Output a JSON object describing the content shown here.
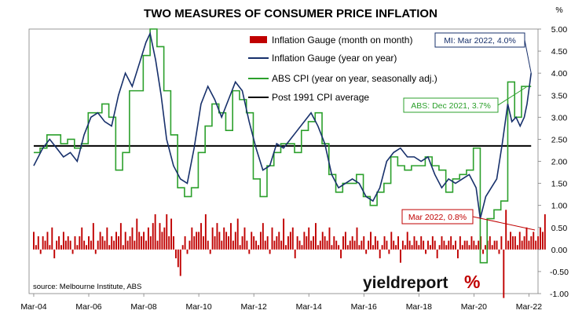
{
  "chart_data": {
    "type": "bar+line",
    "title": "TWO MEASURES OF CONSUMER PRICE INFLATION",
    "y_unit_label": "%",
    "ylim": [
      -1.0,
      5.0
    ],
    "y_ticks": [
      "5.00",
      "4.50",
      "4.00",
      "3.50",
      "3.00",
      "2.50",
      "2.00",
      "1.50",
      "1.00",
      "0.50",
      "0.00",
      "-0.50",
      "-1.00"
    ],
    "x_ticks": [
      "Mar-04",
      "Mar-06",
      "Mar-08",
      "Mar-10",
      "Mar-12",
      "Mar-14",
      "Mar-16",
      "Mar-18",
      "Mar-20",
      "Mar-22"
    ],
    "x_range": [
      "2004-03",
      "2022-03"
    ],
    "grid": false,
    "legend_position": "top-center",
    "legend": [
      {
        "label": "Inflation Gauge (month on month)",
        "color": "#c00000",
        "kind": "bar"
      },
      {
        "label": "Inflation Gauge (year on year)",
        "color": "#17306b",
        "kind": "line"
      },
      {
        "label": "ABS CPI (year on year, seasonally adj.)",
        "color": "#2ca02c",
        "kind": "line"
      },
      {
        "label": "Post 1991 CPI average",
        "color": "#000000",
        "kind": "line"
      }
    ],
    "series": [
      {
        "name": "Inflation Gauge (year on year)",
        "color": "#17306b",
        "points": [
          [
            2004.17,
            1.9
          ],
          [
            2004.5,
            2.3
          ],
          [
            2004.75,
            2.5
          ],
          [
            2005.0,
            2.3
          ],
          [
            2005.25,
            2.1
          ],
          [
            2005.5,
            2.2
          ],
          [
            2005.75,
            2.0
          ],
          [
            2006.0,
            2.6
          ],
          [
            2006.25,
            3.0
          ],
          [
            2006.5,
            3.1
          ],
          [
            2006.75,
            2.9
          ],
          [
            2007.0,
            2.8
          ],
          [
            2007.25,
            3.5
          ],
          [
            2007.5,
            4.0
          ],
          [
            2007.75,
            3.7
          ],
          [
            2008.0,
            4.2
          ],
          [
            2008.25,
            4.7
          ],
          [
            2008.4,
            4.9
          ],
          [
            2008.6,
            4.3
          ],
          [
            2008.8,
            3.5
          ],
          [
            2009.0,
            2.5
          ],
          [
            2009.25,
            1.9
          ],
          [
            2009.5,
            1.6
          ],
          [
            2009.75,
            1.5
          ],
          [
            2010.0,
            2.3
          ],
          [
            2010.25,
            3.3
          ],
          [
            2010.5,
            3.7
          ],
          [
            2010.75,
            3.4
          ],
          [
            2011.0,
            3.0
          ],
          [
            2011.25,
            3.4
          ],
          [
            2011.5,
            3.8
          ],
          [
            2011.75,
            3.6
          ],
          [
            2012.0,
            2.9
          ],
          [
            2012.25,
            2.3
          ],
          [
            2012.5,
            1.8
          ],
          [
            2012.75,
            1.9
          ],
          [
            2013.0,
            2.4
          ],
          [
            2013.25,
            2.3
          ],
          [
            2013.5,
            2.5
          ],
          [
            2013.75,
            2.7
          ],
          [
            2014.0,
            2.9
          ],
          [
            2014.25,
            3.1
          ],
          [
            2014.5,
            2.8
          ],
          [
            2014.75,
            2.4
          ],
          [
            2015.0,
            1.7
          ],
          [
            2015.25,
            1.4
          ],
          [
            2015.5,
            1.5
          ],
          [
            2015.75,
            1.6
          ],
          [
            2016.0,
            1.5
          ],
          [
            2016.25,
            1.2
          ],
          [
            2016.5,
            1.1
          ],
          [
            2016.75,
            1.4
          ],
          [
            2017.0,
            2.0
          ],
          [
            2017.25,
            2.2
          ],
          [
            2017.5,
            2.3
          ],
          [
            2017.75,
            2.1
          ],
          [
            2018.0,
            2.1
          ],
          [
            2018.25,
            2.0
          ],
          [
            2018.5,
            2.1
          ],
          [
            2018.75,
            1.7
          ],
          [
            2019.0,
            1.4
          ],
          [
            2019.25,
            1.6
          ],
          [
            2019.5,
            1.5
          ],
          [
            2019.75,
            1.6
          ],
          [
            2020.0,
            1.7
          ],
          [
            2020.25,
            1.4
          ],
          [
            2020.4,
            0.7
          ],
          [
            2020.6,
            1.2
          ],
          [
            2020.8,
            1.4
          ],
          [
            2021.0,
            1.6
          ],
          [
            2021.2,
            2.4
          ],
          [
            2021.4,
            3.3
          ],
          [
            2021.55,
            2.9
          ],
          [
            2021.7,
            3.0
          ],
          [
            2021.85,
            2.8
          ],
          [
            2022.0,
            3.0
          ],
          [
            2022.1,
            3.3
          ],
          [
            2022.25,
            4.0
          ]
        ]
      },
      {
        "name": "ABS CPI (year on year, seasonally adj.)",
        "color": "#2ca02c",
        "step": true,
        "points": [
          [
            2004.17,
            2.2
          ],
          [
            2004.4,
            2.3
          ],
          [
            2004.65,
            2.6
          ],
          [
            2004.9,
            2.6
          ],
          [
            2005.15,
            2.4
          ],
          [
            2005.4,
            2.5
          ],
          [
            2005.65,
            2.3
          ],
          [
            2005.9,
            2.4
          ],
          [
            2006.15,
            3.1
          ],
          [
            2006.4,
            3.1
          ],
          [
            2006.65,
            3.3
          ],
          [
            2006.9,
            3.0
          ],
          [
            2007.15,
            1.8
          ],
          [
            2007.4,
            2.2
          ],
          [
            2007.65,
            3.6
          ],
          [
            2007.9,
            3.6
          ],
          [
            2008.15,
            4.4
          ],
          [
            2008.4,
            5.0
          ],
          [
            2008.65,
            4.6
          ],
          [
            2008.9,
            3.6
          ],
          [
            2009.15,
            2.6
          ],
          [
            2009.4,
            1.4
          ],
          [
            2009.65,
            1.2
          ],
          [
            2009.9,
            1.4
          ],
          [
            2010.15,
            2.2
          ],
          [
            2010.4,
            2.8
          ],
          [
            2010.65,
            3.3
          ],
          [
            2010.9,
            3.1
          ],
          [
            2011.15,
            2.7
          ],
          [
            2011.4,
            3.6
          ],
          [
            2011.65,
            3.4
          ],
          [
            2011.9,
            3.1
          ],
          [
            2012.15,
            1.6
          ],
          [
            2012.4,
            1.2
          ],
          [
            2012.65,
            1.9
          ],
          [
            2012.9,
            2.2
          ],
          [
            2013.15,
            2.4
          ],
          [
            2013.4,
            2.4
          ],
          [
            2013.65,
            2.2
          ],
          [
            2013.9,
            2.7
          ],
          [
            2014.15,
            2.9
          ],
          [
            2014.4,
            3.1
          ],
          [
            2014.65,
            2.4
          ],
          [
            2014.9,
            1.7
          ],
          [
            2015.15,
            1.3
          ],
          [
            2015.4,
            1.5
          ],
          [
            2015.65,
            1.5
          ],
          [
            2015.9,
            1.7
          ],
          [
            2016.15,
            1.2
          ],
          [
            2016.4,
            1.0
          ],
          [
            2016.65,
            1.3
          ],
          [
            2016.9,
            1.5
          ],
          [
            2017.15,
            2.1
          ],
          [
            2017.4,
            1.9
          ],
          [
            2017.65,
            1.8
          ],
          [
            2017.9,
            1.9
          ],
          [
            2018.15,
            1.9
          ],
          [
            2018.4,
            2.1
          ],
          [
            2018.65,
            1.9
          ],
          [
            2018.9,
            1.8
          ],
          [
            2019.15,
            1.3
          ],
          [
            2019.4,
            1.6
          ],
          [
            2019.65,
            1.7
          ],
          [
            2019.9,
            1.8
          ],
          [
            2020.15,
            2.3
          ],
          [
            2020.4,
            -0.3
          ],
          [
            2020.65,
            0.7
          ],
          [
            2020.9,
            0.9
          ],
          [
            2021.15,
            1.1
          ],
          [
            2021.4,
            3.8
          ],
          [
            2021.65,
            3.0
          ],
          [
            2021.9,
            3.7
          ],
          [
            2022.25,
            3.7
          ]
        ]
      },
      {
        "name": "Post 1991 CPI average",
        "color": "#000000",
        "value": 2.35
      },
      {
        "name": "Inflation Gauge (month on month)",
        "color": "#c00000",
        "kind": "bar",
        "start": 2004.17,
        "step_years": 0.08333,
        "values": [
          0.4,
          0.1,
          0.3,
          -0.1,
          0.3,
          0.2,
          0.4,
          0.1,
          0.5,
          -0.2,
          0.2,
          0.3,
          0.1,
          0.4,
          0.2,
          0.3,
          0.2,
          -0.1,
          0.3,
          0.1,
          0.3,
          0.5,
          0.2,
          0.1,
          0.3,
          0.2,
          0.6,
          -0.1,
          0.2,
          0.4,
          0.3,
          0.2,
          0.5,
          0.1,
          0.3,
          0.2,
          0.4,
          0.3,
          0.6,
          0.1,
          0.4,
          0.2,
          0.3,
          0.5,
          0.2,
          0.7,
          0.4,
          0.3,
          0.4,
          0.2,
          0.5,
          0.3,
          0.6,
          0.8,
          0.2,
          0.6,
          0.4,
          0.5,
          0.8,
          0.3,
          0.7,
          0.3,
          -0.2,
          -0.4,
          -0.6,
          0.1,
          0.3,
          -0.1,
          0.2,
          0.5,
          0.3,
          0.4,
          0.4,
          0.6,
          0.3,
          0.8,
          0.2,
          -0.1,
          0.5,
          0.3,
          0.6,
          0.4,
          0.2,
          0.5,
          0.4,
          0.3,
          0.6,
          0.2,
          0.4,
          0.7,
          0.1,
          0.3,
          0.5,
          0.2,
          -0.1,
          0.4,
          0.3,
          0.2,
          0.1,
          0.4,
          0.6,
          0.2,
          0.3,
          -0.1,
          0.5,
          0.2,
          0.3,
          0.4,
          0.2,
          0.7,
          0.1,
          0.3,
          0.4,
          0.5,
          -0.2,
          0.3,
          0.2,
          0.1,
          0.4,
          0.3,
          0.5,
          0.2,
          0.3,
          0.6,
          0.1,
          0.2,
          0.4,
          0.3,
          0.2,
          0.5,
          0.1,
          0.3,
          0.2,
          0.1,
          -0.2,
          0.3,
          0.4,
          0.1,
          0.2,
          0.3,
          0.2,
          0.5,
          0.1,
          0.2,
          0.3,
          -0.1,
          0.2,
          0.4,
          0.1,
          0.3,
          0.2,
          -0.2,
          0.1,
          0.3,
          0.2,
          -0.1,
          0.4,
          0.2,
          0.1,
          0.3,
          -0.3,
          0.2,
          0.1,
          0.4,
          0.2,
          0.1,
          0.3,
          0.2,
          0.1,
          0.3,
          0.2,
          -0.1,
          0.2,
          0.1,
          0.3,
          0.2,
          -0.2,
          0.1,
          0.3,
          0.2,
          0.1,
          0.2,
          0.3,
          0.1,
          0.2,
          -0.2,
          0.3,
          0.1,
          0.2,
          0.2,
          0.1,
          0.3,
          0.2,
          0.1,
          0.2,
          0.3,
          -0.1,
          0.1,
          0.2,
          0.3,
          0.1,
          0.2,
          0.2,
          -0.1,
          0.3,
          -1.1,
          0.9,
          0.2,
          0.4,
          0.3,
          0.3,
          0.1,
          0.4,
          0.2,
          0.3,
          0.5,
          0.2,
          0.3,
          0.4,
          0.2,
          0.3,
          0.5,
          0.4,
          0.8
        ]
      }
    ],
    "annotations": [
      {
        "text": "MI: Mar 2022, 4.0%",
        "color": "#17306b",
        "x": 2022.25,
        "y": 4.0
      },
      {
        "text": "ABS: Dec 2021, 3.7%",
        "color": "#2ca02c",
        "x": 2022.0,
        "y": 3.7
      },
      {
        "text": "Mar 2022, 0.8%",
        "color": "#c00000",
        "x": 2022.25,
        "y": 0.8
      }
    ],
    "source": "source: Melbourne Institute, ABS",
    "brand": {
      "name": "yieldreport",
      "mark": "%"
    }
  }
}
